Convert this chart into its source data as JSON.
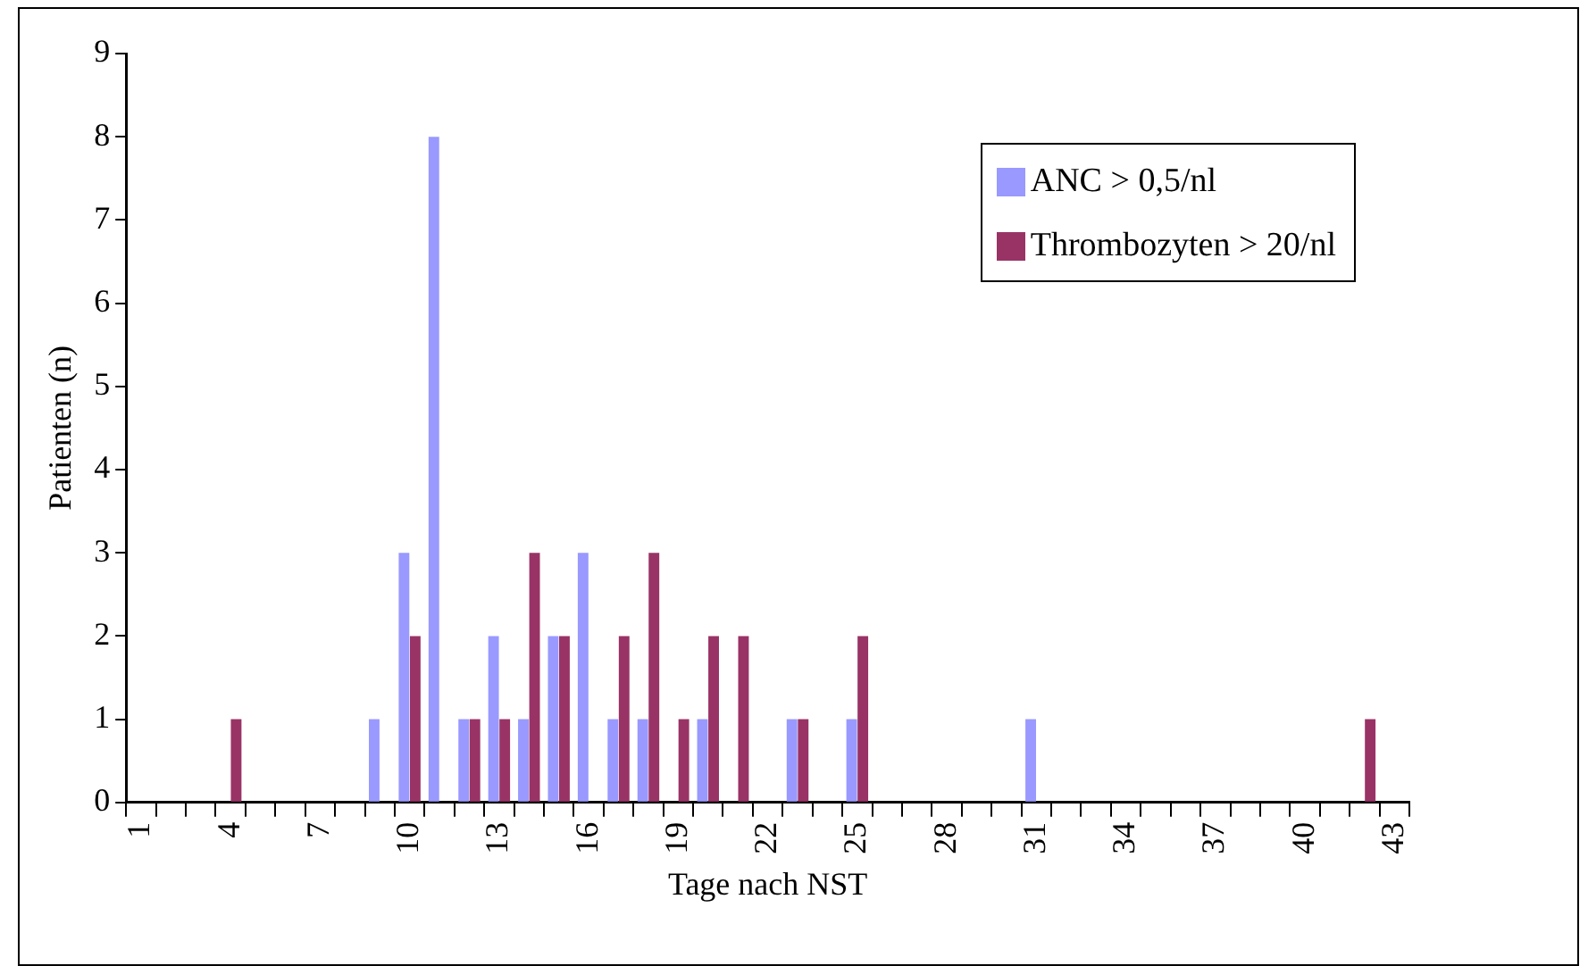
{
  "chart_data": {
    "type": "bar",
    "xlabel": "Tage nach NST",
    "ylabel": "Patienten (n)",
    "categories": [
      "1",
      null,
      null,
      "4",
      null,
      null,
      "7",
      null,
      null,
      "10",
      null,
      null,
      "13",
      null,
      null,
      "16",
      null,
      null,
      "19",
      null,
      null,
      "22",
      null,
      null,
      "25",
      null,
      null,
      "28",
      null,
      null,
      "31",
      null,
      null,
      "34",
      null,
      null,
      "37",
      null,
      null,
      "40",
      null,
      null,
      "43"
    ],
    "series": [
      {
        "name": "ANC > 0,5/nl",
        "color": "#9999ff",
        "values": [
          0,
          0,
          0,
          0,
          0,
          0,
          0,
          0,
          1,
          3,
          8,
          1,
          2,
          1,
          2,
          3,
          1,
          1,
          0,
          1,
          0,
          0,
          1,
          0,
          1,
          0,
          0,
          0,
          0,
          0,
          1,
          0,
          0,
          0,
          0,
          0,
          0,
          0,
          0,
          0,
          0,
          0,
          0
        ]
      },
      {
        "name": "Thrombozyten > 20/nl",
        "color": "#993366",
        "values": [
          0,
          0,
          0,
          1,
          0,
          0,
          0,
          0,
          0,
          2,
          0,
          1,
          1,
          3,
          2,
          0,
          2,
          3,
          1,
          2,
          2,
          0,
          1,
          0,
          2,
          0,
          0,
          0,
          0,
          0,
          0,
          0,
          0,
          0,
          0,
          0,
          0,
          0,
          0,
          0,
          0,
          1,
          0
        ]
      }
    ],
    "ylim": [
      0,
      9
    ],
    "yticks": [
      0,
      1,
      2,
      3,
      4,
      5,
      6,
      7,
      8,
      9
    ],
    "grid": false,
    "legend": "top right"
  }
}
